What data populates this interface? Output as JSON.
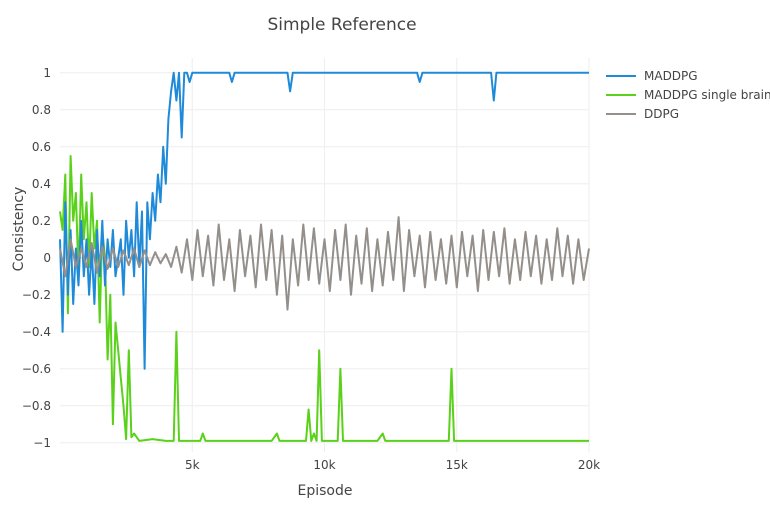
{
  "chart_data": {
    "type": "line",
    "title": "Simple Reference",
    "xlabel": "Episode",
    "ylabel": "Consistency",
    "xlim": [
      0,
      20000
    ],
    "ylim": [
      -1.05,
      1.08
    ],
    "x_ticks": [
      {
        "value": 5000,
        "label": "5k"
      },
      {
        "value": 10000,
        "label": "10k"
      },
      {
        "value": 15000,
        "label": "15k"
      },
      {
        "value": 20000,
        "label": "20k"
      }
    ],
    "y_ticks": [
      {
        "value": 1,
        "label": "1"
      },
      {
        "value": 0.8,
        "label": "0.8"
      },
      {
        "value": 0.6,
        "label": "0.6"
      },
      {
        "value": 0.4,
        "label": "0.4"
      },
      {
        "value": 0.2,
        "label": "0.2"
      },
      {
        "value": 0,
        "label": "0"
      },
      {
        "value": -0.2,
        "label": "−0.2"
      },
      {
        "value": -0.4,
        "label": "−0.4"
      },
      {
        "value": -0.6,
        "label": "−0.6"
      },
      {
        "value": -0.8,
        "label": "−0.8"
      },
      {
        "value": -1,
        "label": "−1"
      }
    ],
    "grid": true,
    "legend_position": "top-right",
    "series": [
      {
        "name": "MADDPG",
        "color": "#1f8ad8",
        "x": [
          0,
          100,
          200,
          300,
          400,
          500,
          600,
          700,
          800,
          900,
          1000,
          1100,
          1200,
          1300,
          1400,
          1500,
          1600,
          1700,
          1800,
          1900,
          2000,
          2100,
          2200,
          2300,
          2400,
          2500,
          2600,
          2700,
          2800,
          2900,
          3000,
          3100,
          3200,
          3300,
          3400,
          3500,
          3600,
          3700,
          3800,
          3900,
          4000,
          4100,
          4200,
          4300,
          4400,
          4500,
          4600,
          4700,
          4800,
          4900,
          5000,
          5500,
          6000,
          6400,
          6500,
          6600,
          7000,
          8000,
          8600,
          8700,
          8800,
          9000,
          10000,
          11000,
          12000,
          13000,
          13500,
          13600,
          13700,
          14000,
          15000,
          16000,
          16300,
          16400,
          16500,
          17000,
          18000,
          19000,
          20000
        ],
        "y": [
          0.1,
          -0.4,
          0.3,
          -0.2,
          0.15,
          -0.25,
          0.05,
          -0.15,
          0.2,
          -0.1,
          0.1,
          -0.2,
          0.05,
          -0.25,
          0.15,
          -0.1,
          0.2,
          -0.15,
          0.1,
          -0.05,
          0.15,
          -0.1,
          0.0,
          0.1,
          -0.2,
          0.2,
          0.0,
          0.15,
          -0.1,
          0.3,
          -0.05,
          0.25,
          -0.6,
          0.3,
          0.1,
          0.35,
          0.2,
          0.45,
          0.3,
          0.6,
          0.4,
          0.75,
          0.9,
          1.0,
          0.85,
          1.0,
          0.65,
          1.0,
          1.0,
          0.95,
          1.0,
          1.0,
          1.0,
          1.0,
          0.95,
          1.0,
          1.0,
          1.0,
          1.0,
          0.9,
          1.0,
          1.0,
          1.0,
          1.0,
          1.0,
          1.0,
          1.0,
          0.95,
          1.0,
          1.0,
          1.0,
          1.0,
          1.0,
          0.85,
          1.0,
          1.0,
          1.0,
          1.0,
          1.0
        ]
      },
      {
        "name": "MADDPG single brain",
        "color": "#5ad11a",
        "x": [
          0,
          100,
          200,
          300,
          400,
          500,
          600,
          700,
          800,
          900,
          1000,
          1100,
          1200,
          1300,
          1400,
          1500,
          1600,
          1700,
          1800,
          1900,
          2000,
          2100,
          2200,
          2300,
          2400,
          2500,
          2600,
          2700,
          2800,
          3000,
          3500,
          4000,
          4300,
          4400,
          4500,
          5000,
          5300,
          5400,
          5500,
          6000,
          8000,
          8200,
          8300,
          8400,
          9300,
          9400,
          9500,
          9600,
          9700,
          9800,
          9900,
          10000,
          10500,
          10600,
          10700,
          11000,
          12000,
          12200,
          12300,
          14000,
          14700,
          14800,
          14900,
          15000,
          16000,
          20000
        ],
        "y": [
          0.25,
          0.15,
          0.45,
          -0.3,
          0.55,
          0.2,
          0.35,
          -0.1,
          0.45,
          0.1,
          0.3,
          -0.05,
          0.35,
          0.05,
          0.2,
          -0.35,
          0.15,
          0.0,
          -0.55,
          -0.2,
          -0.9,
          -0.35,
          -0.5,
          -0.65,
          -0.8,
          -0.98,
          -0.5,
          -0.97,
          -0.95,
          -0.99,
          -0.98,
          -0.99,
          -0.99,
          -0.4,
          -0.99,
          -0.99,
          -0.99,
          -0.95,
          -0.99,
          -0.99,
          -0.99,
          -0.95,
          -0.99,
          -0.99,
          -0.99,
          -0.82,
          -0.99,
          -0.95,
          -0.99,
          -0.5,
          -0.99,
          -0.99,
          -0.99,
          -0.6,
          -0.99,
          -0.99,
          -0.99,
          -0.95,
          -0.99,
          -0.99,
          -0.99,
          -0.6,
          -0.99,
          -0.99,
          -0.99,
          -0.99
        ]
      },
      {
        "name": "DDPG",
        "color": "#948f8a",
        "x": [
          0,
          200,
          400,
          600,
          800,
          1000,
          1200,
          1400,
          1600,
          1800,
          2000,
          2200,
          2400,
          2600,
          2800,
          3000,
          3200,
          3400,
          3600,
          3800,
          4000,
          4200,
          4400,
          4600,
          4800,
          5000,
          5200,
          5400,
          5600,
          5800,
          6000,
          6200,
          6400,
          6600,
          6800,
          7000,
          7200,
          7400,
          7600,
          7800,
          8000,
          8200,
          8400,
          8600,
          8800,
          9000,
          9200,
          9400,
          9600,
          9800,
          10000,
          10200,
          10400,
          10600,
          10800,
          11000,
          11200,
          11400,
          11600,
          11800,
          12000,
          12200,
          12400,
          12600,
          12800,
          13000,
          13200,
          13400,
          13600,
          13800,
          14000,
          14200,
          14400,
          14600,
          14800,
          15000,
          15200,
          15400,
          15600,
          15800,
          16000,
          16200,
          16400,
          16600,
          16800,
          17000,
          17200,
          17400,
          17600,
          17800,
          18000,
          18200,
          18400,
          18600,
          18800,
          19000,
          19200,
          19400,
          19600,
          19800,
          20000
        ],
        "y": [
          0.05,
          -0.1,
          0.1,
          -0.05,
          0.05,
          -0.05,
          0.08,
          -0.08,
          0.06,
          -0.06,
          0.05,
          -0.05,
          0.04,
          -0.04,
          0.05,
          -0.05,
          0.04,
          -0.04,
          0.03,
          -0.03,
          0.02,
          -0.05,
          0.06,
          -0.08,
          0.1,
          -0.12,
          0.15,
          -0.1,
          0.12,
          -0.15,
          0.18,
          -0.12,
          0.1,
          -0.18,
          0.15,
          -0.1,
          0.12,
          -0.16,
          0.18,
          -0.12,
          0.15,
          -0.2,
          0.12,
          -0.28,
          0.1,
          -0.15,
          0.18,
          -0.12,
          0.16,
          -0.14,
          0.1,
          -0.18,
          0.15,
          -0.12,
          0.18,
          -0.2,
          0.12,
          -0.14,
          0.16,
          -0.18,
          0.1,
          -0.15,
          0.14,
          -0.12,
          0.22,
          -0.18,
          0.15,
          -0.1,
          0.12,
          -0.16,
          0.14,
          -0.12,
          0.1,
          -0.14,
          0.12,
          -0.16,
          0.14,
          -0.1,
          0.12,
          -0.18,
          0.15,
          -0.12,
          0.14,
          -0.1,
          0.16,
          -0.14,
          0.1,
          -0.12,
          0.14,
          -0.1,
          0.12,
          -0.14,
          0.1,
          -0.12,
          0.16,
          -0.1,
          0.12,
          -0.14,
          0.1,
          -0.12,
          0.05
        ]
      }
    ]
  }
}
